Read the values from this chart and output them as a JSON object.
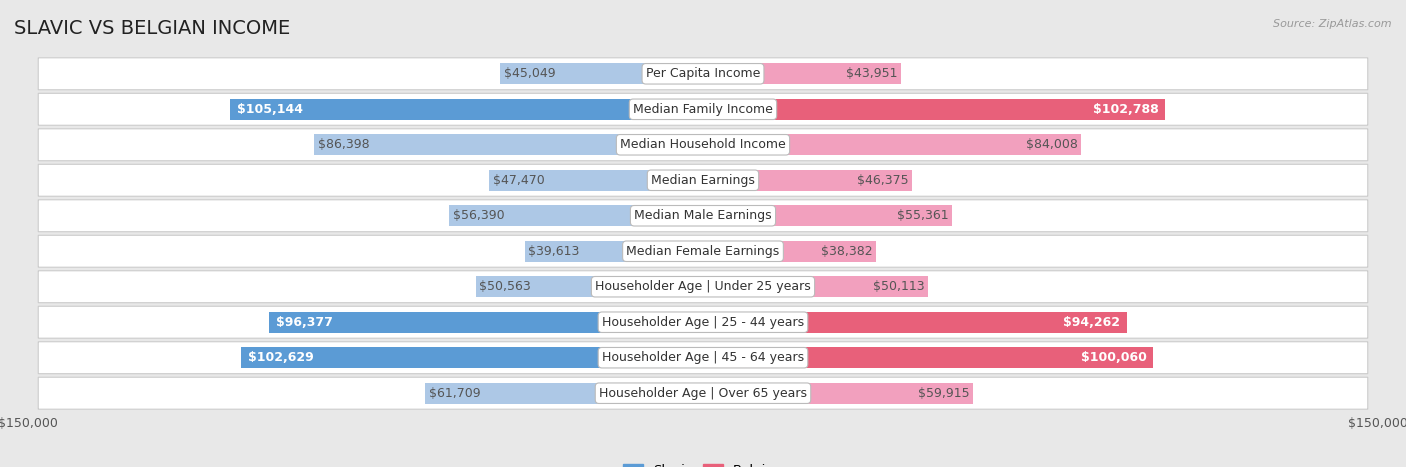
{
  "title": "SLAVIC VS BELGIAN INCOME",
  "source": "Source: ZipAtlas.com",
  "categories": [
    "Per Capita Income",
    "Median Family Income",
    "Median Household Income",
    "Median Earnings",
    "Median Male Earnings",
    "Median Female Earnings",
    "Householder Age | Under 25 years",
    "Householder Age | 25 - 44 years",
    "Householder Age | 45 - 64 years",
    "Householder Age | Over 65 years"
  ],
  "slavic_values": [
    45049,
    105144,
    86398,
    47470,
    56390,
    39613,
    50563,
    96377,
    102629,
    61709
  ],
  "belgian_values": [
    43951,
    102788,
    84008,
    46375,
    55361,
    38382,
    50113,
    94262,
    100060,
    59915
  ],
  "slavic_labels": [
    "$45,049",
    "$105,144",
    "$86,398",
    "$47,470",
    "$56,390",
    "$39,613",
    "$50,563",
    "$96,377",
    "$102,629",
    "$61,709"
  ],
  "belgian_labels": [
    "$43,951",
    "$102,788",
    "$84,008",
    "$46,375",
    "$55,361",
    "$38,382",
    "$50,113",
    "$94,262",
    "$100,060",
    "$59,915"
  ],
  "slavic_color_light": "#adc8e6",
  "slavic_color_dark": "#5b9bd5",
  "belgian_color_light": "#f2a0be",
  "belgian_color_dark": "#e8607a",
  "max_value": 150000,
  "background_color": "#e8e8e8",
  "row_bg_color": "#f5f5f5",
  "row_border_color": "#cccccc",
  "title_fontsize": 14,
  "label_fontsize": 9,
  "category_fontsize": 9,
  "large_threshold": 0.58
}
